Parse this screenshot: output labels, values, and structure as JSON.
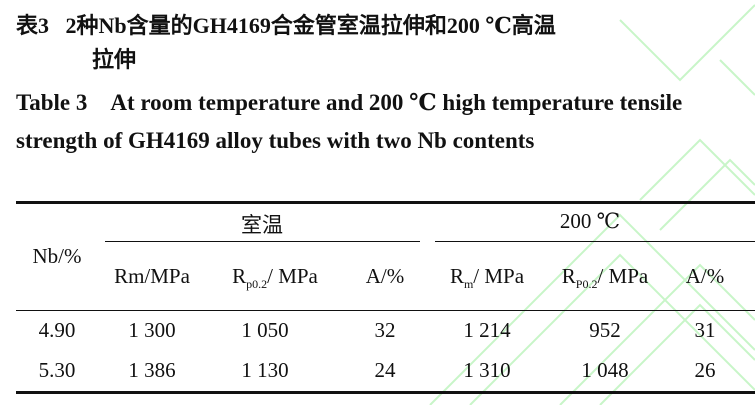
{
  "caption": {
    "cn_label": "表3",
    "cn_title_line1": "2种Nb含量的GH4169合金管室温拉伸和200 ℃高温",
    "cn_title_line2": "拉伸",
    "en_label": "Table 3",
    "en_title": "At room temperature and 200 ℃ high temperature tensile strength of GH4169 alloy tubes with two Nb contents"
  },
  "table": {
    "row_header": "Nb/%",
    "groups": [
      "室温",
      "200 ℃"
    ],
    "columns": [
      {
        "base": "Rm/MPa",
        "sub": ""
      },
      {
        "base": "R",
        "sub": "p0.2",
        "unit": "/ MPa"
      },
      {
        "base": "A/%",
        "sub": ""
      },
      {
        "base": "R",
        "sub": "m",
        "unit": "/ MPa"
      },
      {
        "base": "R",
        "sub": "P0.2",
        "unit": "/ MPa"
      },
      {
        "base": "A/%",
        "sub": ""
      }
    ],
    "rows": [
      [
        "4.90",
        "1 300",
        "1 050",
        "32",
        "1 214",
        "952",
        "31"
      ],
      [
        "5.30",
        "1 386",
        "1 130",
        "24",
        "1 310",
        "1 048",
        "26"
      ]
    ]
  },
  "colors": {
    "watermark": "#c8f5c8"
  }
}
